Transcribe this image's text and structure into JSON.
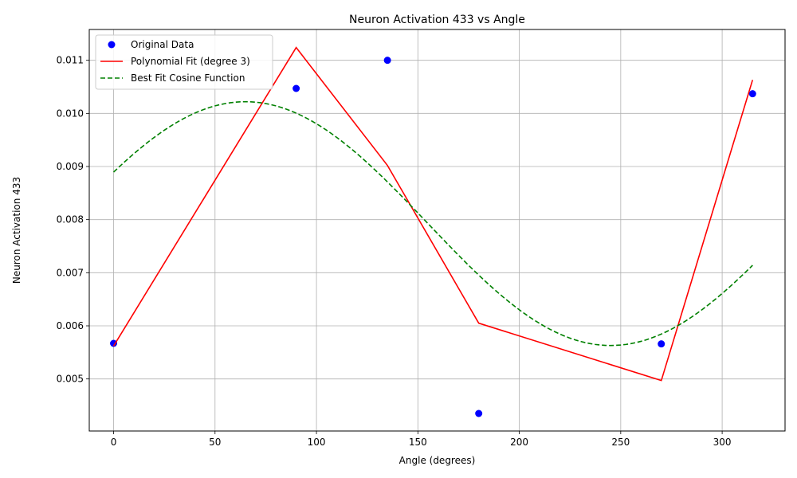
{
  "chart_data": {
    "type": "scatter",
    "title": "Neuron Activation 433 vs Angle",
    "xlabel": "Angle (degrees)",
    "ylabel": "Neuron Activation 433",
    "xlim": [
      -12,
      331
    ],
    "ylim": [
      0.00402,
      0.01158
    ],
    "xticks": [
      0,
      50,
      100,
      150,
      200,
      250,
      300
    ],
    "yticks": [
      0.005,
      0.006,
      0.007,
      0.008,
      0.009,
      0.01,
      0.011
    ],
    "ytick_labels": [
      "0.005",
      "0.006",
      "0.007",
      "0.008",
      "0.009",
      "0.010",
      "0.011"
    ],
    "grid": true,
    "legend_position": "top-left",
    "series": [
      {
        "name": "Original Data",
        "kind": "scatter",
        "color": "#0000ff",
        "x": [
          0,
          90,
          135,
          180,
          270,
          315
        ],
        "y": [
          0.00567,
          0.01047,
          0.011,
          0.00435,
          0.00566,
          0.01037
        ]
      },
      {
        "name": "Polynomial Fit (degree 3)",
        "kind": "line",
        "color": "#ff0000",
        "dash": "solid",
        "x": [
          0,
          90,
          135,
          180,
          270,
          315
        ],
        "y": [
          0.00562,
          0.01124,
          0.00902,
          0.00605,
          0.00497,
          0.01063
        ]
      },
      {
        "name": "Best Fit Cosine Function",
        "kind": "line",
        "color": "#008000",
        "dash": "dashed",
        "function": {
          "type": "cosine",
          "offset": 0.007925,
          "amplitude": 0.002295,
          "phase_deg": 65,
          "x_start": 0,
          "x_end": 315
        }
      }
    ]
  }
}
